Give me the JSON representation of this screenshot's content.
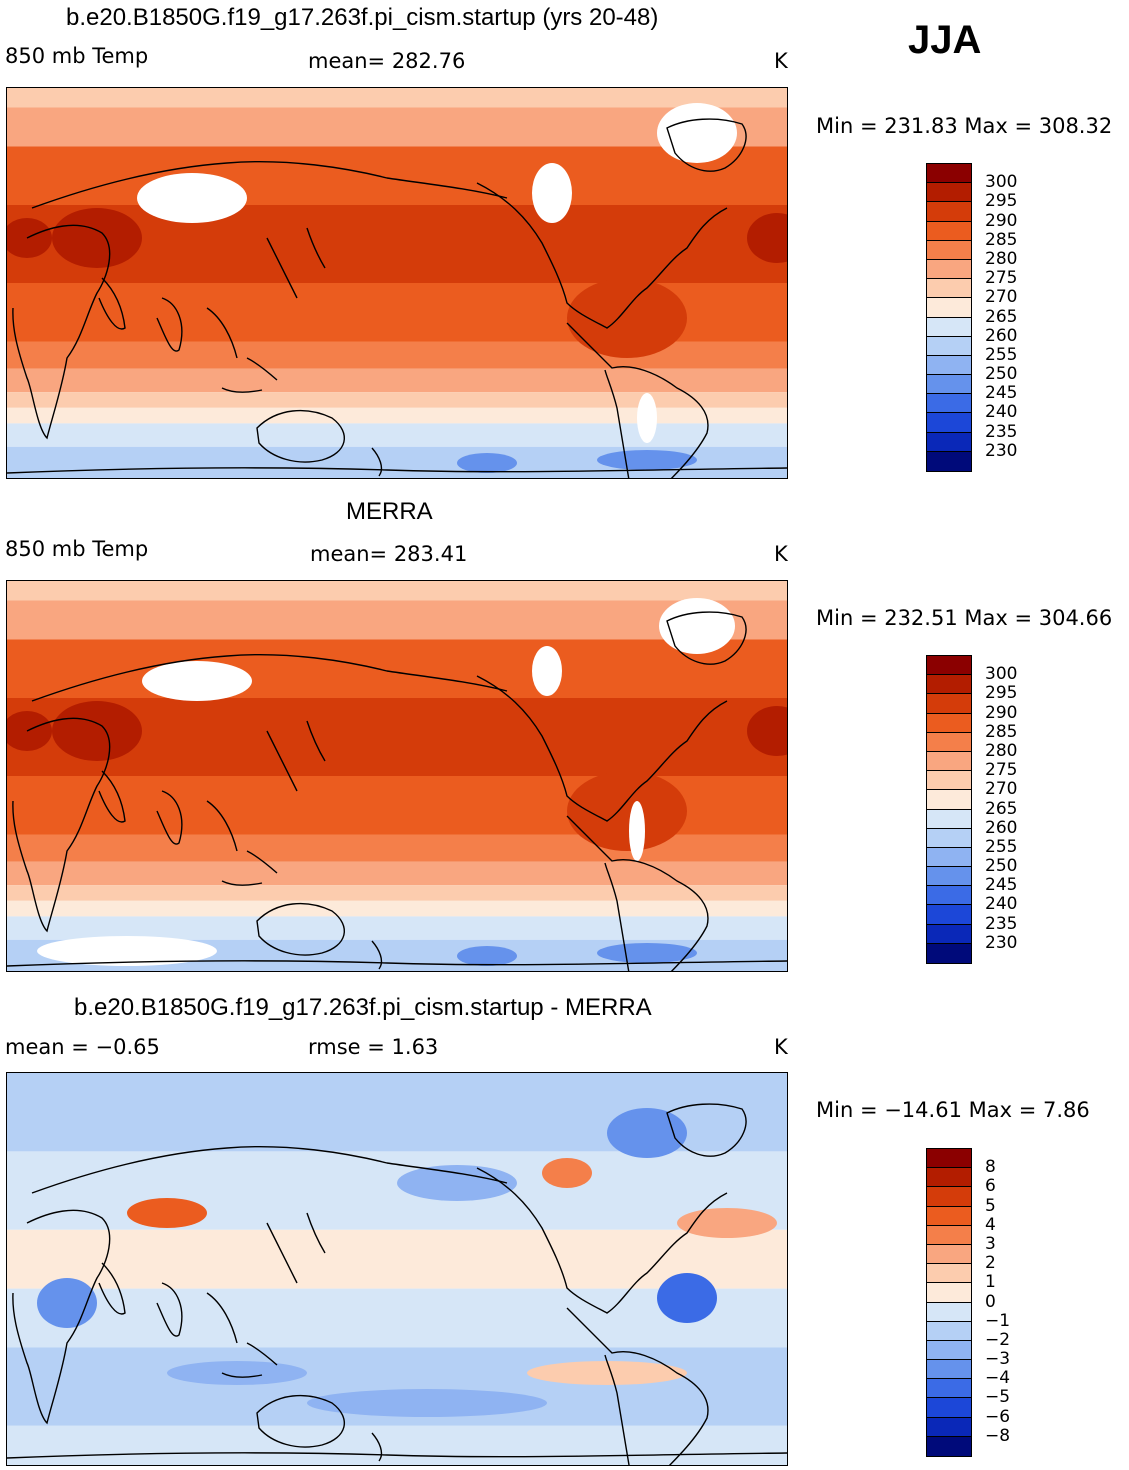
{
  "season": "JJA",
  "colors": {
    "temp_scale": [
      "#8b0000",
      "#b31d00",
      "#d43c0a",
      "#eb5c1f",
      "#f47f4a",
      "#f9a680",
      "#fcccae",
      "#fdeada",
      "#d6e6f7",
      "#b5d0f5",
      "#8fb3f2",
      "#6592ec",
      "#3b6be6",
      "#1c47d8",
      "#0a28b8",
      "#000a7a"
    ],
    "diff_scale": [
      "#8b0000",
      "#b31d00",
      "#d43c0a",
      "#eb5c1f",
      "#f47f4a",
      "#f9a680",
      "#fcccae",
      "#fdeada",
      "#d6e6f7",
      "#b5d0f5",
      "#8fb3f2",
      "#6592ec",
      "#3b6be6",
      "#1c47d8",
      "#0a28b8",
      "#000a7a"
    ]
  },
  "panels": [
    {
      "title": "b.e20.B1850G.f19_g17.263f.pi_cism.startup (yrs 20-48)",
      "left": "850 mb Temp",
      "middle": "mean=  282.76",
      "units": "K",
      "minmax": "Min = 231.83 Max = 308.32",
      "mapkind": "model",
      "labels": [
        "300",
        "295",
        "290",
        "285",
        "280",
        "275",
        "270",
        "265",
        "260",
        "255",
        "250",
        "245",
        "240",
        "235",
        "230"
      ]
    },
    {
      "title": "MERRA",
      "left": "850 mb Temp",
      "middle": "mean=  283.41",
      "units": "K",
      "minmax": "Min = 232.51 Max = 304.66",
      "mapkind": "obs",
      "labels": [
        "300",
        "295",
        "290",
        "285",
        "280",
        "275",
        "270",
        "265",
        "260",
        "255",
        "250",
        "245",
        "240",
        "235",
        "230"
      ]
    },
    {
      "title": "b.e20.B1850G.f19_g17.263f.pi_cism.startup - MERRA",
      "left": "mean =    −0.65",
      "middle": "rmse =     1.63",
      "units": "K",
      "minmax": "Min = −14.61 Max =     7.86",
      "mapkind": "diff",
      "labels": [
        "8",
        "6",
        "5",
        "4",
        "3",
        "2",
        "1",
        "0",
        "−1",
        "−2",
        "−3",
        "−4",
        "−5",
        "−6",
        "−8"
      ]
    }
  ]
}
